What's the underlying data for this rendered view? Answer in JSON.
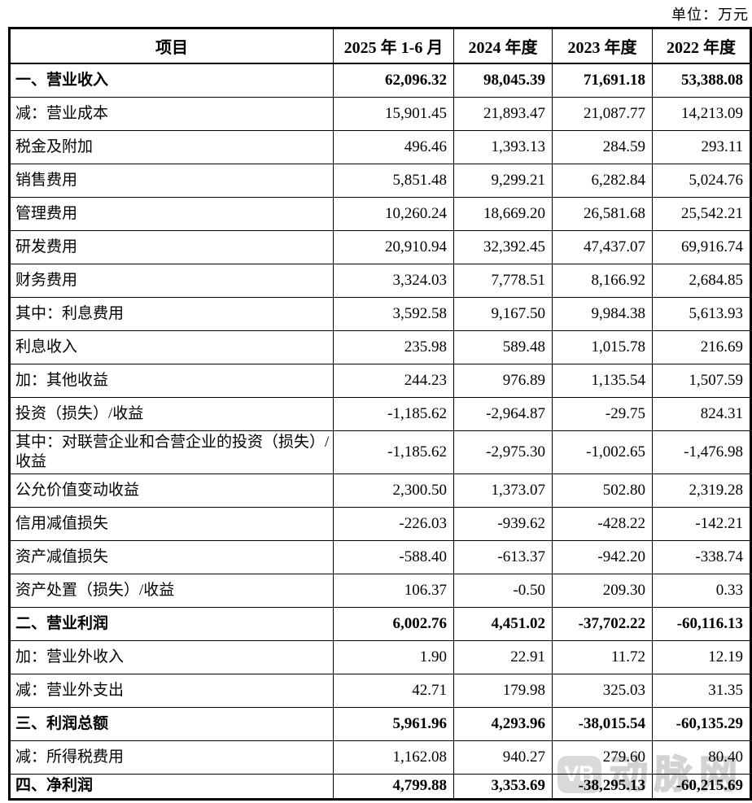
{
  "unit_label": "单位：万元",
  "watermark": {
    "logo_text": "VB",
    "text": "动脉网"
  },
  "table": {
    "columns": [
      "项目",
      "2025 年 1-6 月",
      "2024 年度",
      "2023 年度",
      "2022 年度"
    ],
    "rows": [
      {
        "label": "一、营业收入",
        "bold": true,
        "values": [
          "62,096.32",
          "98,045.39",
          "71,691.18",
          "53,388.08"
        ]
      },
      {
        "label": "减：营业成本",
        "bold": false,
        "values": [
          "15,901.45",
          "21,893.47",
          "21,087.77",
          "14,213.09"
        ]
      },
      {
        "label": "税金及附加",
        "bold": false,
        "values": [
          "496.46",
          "1,393.13",
          "284.59",
          "293.11"
        ]
      },
      {
        "label": "销售费用",
        "bold": false,
        "values": [
          "5,851.48",
          "9,299.21",
          "6,282.84",
          "5,024.76"
        ]
      },
      {
        "label": "管理费用",
        "bold": false,
        "values": [
          "10,260.24",
          "18,669.20",
          "26,581.68",
          "25,542.21"
        ]
      },
      {
        "label": "研发费用",
        "bold": false,
        "values": [
          "20,910.94",
          "32,392.45",
          "47,437.07",
          "69,916.74"
        ]
      },
      {
        "label": "财务费用",
        "bold": false,
        "values": [
          "3,324.03",
          "7,778.51",
          "8,166.92",
          "2,684.85"
        ]
      },
      {
        "label": "其中：利息费用",
        "bold": false,
        "values": [
          "3,592.58",
          "9,167.50",
          "9,984.38",
          "5,613.93"
        ]
      },
      {
        "label": "利息收入",
        "bold": false,
        "values": [
          "235.98",
          "589.48",
          "1,015.78",
          "216.69"
        ]
      },
      {
        "label": "加：其他收益",
        "bold": false,
        "values": [
          "244.23",
          "976.89",
          "1,135.54",
          "1,507.59"
        ]
      },
      {
        "label": "投资（损失）/收益",
        "bold": false,
        "values": [
          "-1,185.62",
          "-2,964.87",
          "-29.75",
          "824.31"
        ]
      },
      {
        "label": "其中：对联营企业和合营企业的投资（损失）/收益",
        "bold": false,
        "values": [
          "-1,185.62",
          "-2,975.30",
          "-1,002.65",
          "-1,476.98"
        ]
      },
      {
        "label": "公允价值变动收益",
        "bold": false,
        "values": [
          "2,300.50",
          "1,373.07",
          "502.80",
          "2,319.28"
        ]
      },
      {
        "label": "信用减值损失",
        "bold": false,
        "values": [
          "-226.03",
          "-939.62",
          "-428.22",
          "-142.21"
        ]
      },
      {
        "label": "资产减值损失",
        "bold": false,
        "values": [
          "-588.40",
          "-613.37",
          "-942.20",
          "-338.74"
        ]
      },
      {
        "label": "资产处置（损失）/收益",
        "bold": false,
        "values": [
          "106.37",
          "-0.50",
          "209.30",
          "0.33"
        ]
      },
      {
        "label": "二、营业利润",
        "bold": true,
        "values": [
          "6,002.76",
          "4,451.02",
          "-37,702.22",
          "-60,116.13"
        ]
      },
      {
        "label": "加：营业外收入",
        "bold": false,
        "values": [
          "1.90",
          "22.91",
          "11.72",
          "12.19"
        ]
      },
      {
        "label": "减：营业外支出",
        "bold": false,
        "values": [
          "42.71",
          "179.98",
          "325.03",
          "31.35"
        ]
      },
      {
        "label": "三、利润总额",
        "bold": true,
        "values": [
          "5,961.96",
          "4,293.96",
          "-38,015.54",
          "-60,135.29"
        ]
      },
      {
        "label": "减：所得税费用",
        "bold": false,
        "values": [
          "1,162.08",
          "940.27",
          "279.60",
          "80.40"
        ]
      },
      {
        "label": "四、净利润",
        "bold": true,
        "values": [
          "4,799.88",
          "3,353.69",
          "-38,295.13",
          "-60,215.69"
        ]
      }
    ]
  }
}
